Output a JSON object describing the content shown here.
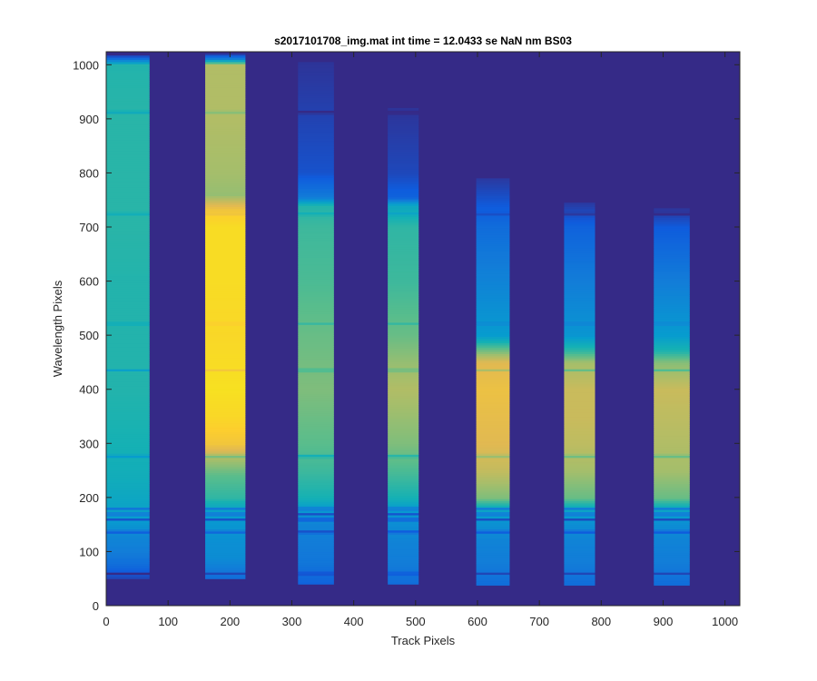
{
  "figure": {
    "background": "#ffffff"
  },
  "chart_data": {
    "type": "heatmap",
    "title": "s2017101708_img.mat int time = 12.0433 se  NaN nm BS03",
    "xlabel": "Track Pixels",
    "ylabel": "Wavelength Pixels",
    "xlim": [
      0,
      1024
    ],
    "ylim": [
      0,
      1024
    ],
    "xticks": [
      0,
      100,
      200,
      300,
      400,
      500,
      600,
      700,
      800,
      900,
      1000
    ],
    "yticks": [
      0,
      100,
      200,
      300,
      400,
      500,
      600,
      700,
      800,
      900,
      1000
    ],
    "grid": false,
    "colormap": "parula",
    "background_color": "#352a87",
    "tracks": [
      {
        "x_start": 0,
        "x_end": 70,
        "y_start": 50,
        "y_end": 1020,
        "profile": [
          [
            50,
            0.05
          ],
          [
            75,
            0.15
          ],
          [
            100,
            0.2
          ],
          [
            130,
            0.23
          ],
          [
            150,
            0.28
          ],
          [
            170,
            0.32
          ],
          [
            200,
            0.35
          ],
          [
            240,
            0.38
          ],
          [
            300,
            0.4
          ],
          [
            400,
            0.42
          ],
          [
            500,
            0.42
          ],
          [
            600,
            0.42
          ],
          [
            700,
            0.43
          ],
          [
            800,
            0.43
          ],
          [
            900,
            0.43
          ],
          [
            1000,
            0.42
          ],
          [
            1012,
            0.15
          ],
          [
            1020,
            0.0
          ]
        ]
      },
      {
        "x_start": 160,
        "x_end": 225,
        "y_start": 50,
        "y_end": 1020,
        "profile": [
          [
            50,
            0.15
          ],
          [
            90,
            0.25
          ],
          [
            120,
            0.26
          ],
          [
            150,
            0.28
          ],
          [
            175,
            0.32
          ],
          [
            200,
            0.44
          ],
          [
            240,
            0.5
          ],
          [
            270,
            0.6
          ],
          [
            300,
            0.76
          ],
          [
            350,
            0.84
          ],
          [
            400,
            0.88
          ],
          [
            450,
            0.86
          ],
          [
            500,
            0.84
          ],
          [
            600,
            0.86
          ],
          [
            700,
            0.86
          ],
          [
            725,
            0.8
          ],
          [
            760,
            0.58
          ],
          [
            800,
            0.6
          ],
          [
            900,
            0.62
          ],
          [
            1000,
            0.62
          ],
          [
            1012,
            0.2
          ],
          [
            1020,
            0.05
          ]
        ]
      },
      {
        "x_start": 310,
        "x_end": 368,
        "y_start": 40,
        "y_end": 1005,
        "profile": [
          [
            40,
            0.12
          ],
          [
            80,
            0.18
          ],
          [
            120,
            0.2
          ],
          [
            150,
            0.22
          ],
          [
            180,
            0.3
          ],
          [
            200,
            0.4
          ],
          [
            250,
            0.46
          ],
          [
            300,
            0.5
          ],
          [
            400,
            0.55
          ],
          [
            500,
            0.52
          ],
          [
            600,
            0.48
          ],
          [
            700,
            0.46
          ],
          [
            740,
            0.42
          ],
          [
            755,
            0.2
          ],
          [
            800,
            0.08
          ],
          [
            900,
            0.05
          ],
          [
            1005,
            0.02
          ]
        ]
      },
      {
        "x_start": 455,
        "x_end": 505,
        "y_start": 40,
        "y_end": 920,
        "profile": [
          [
            40,
            0.15
          ],
          [
            80,
            0.2
          ],
          [
            120,
            0.22
          ],
          [
            150,
            0.25
          ],
          [
            180,
            0.3
          ],
          [
            200,
            0.4
          ],
          [
            250,
            0.48
          ],
          [
            300,
            0.55
          ],
          [
            400,
            0.62
          ],
          [
            450,
            0.58
          ],
          [
            500,
            0.52
          ],
          [
            600,
            0.46
          ],
          [
            700,
            0.44
          ],
          [
            740,
            0.35
          ],
          [
            755,
            0.12
          ],
          [
            800,
            0.06
          ],
          [
            920,
            0.02
          ]
        ]
      },
      {
        "x_start": 598,
        "x_end": 652,
        "y_start": 38,
        "y_end": 790,
        "profile": [
          [
            38,
            0.15
          ],
          [
            80,
            0.2
          ],
          [
            120,
            0.22
          ],
          [
            150,
            0.26
          ],
          [
            180,
            0.35
          ],
          [
            200,
            0.55
          ],
          [
            250,
            0.65
          ],
          [
            300,
            0.7
          ],
          [
            350,
            0.72
          ],
          [
            400,
            0.74
          ],
          [
            450,
            0.7
          ],
          [
            470,
            0.55
          ],
          [
            500,
            0.3
          ],
          [
            600,
            0.22
          ],
          [
            700,
            0.15
          ],
          [
            790,
            0.03
          ]
        ]
      },
      {
        "x_start": 740,
        "x_end": 790,
        "y_start": 38,
        "y_end": 745,
        "profile": [
          [
            38,
            0.15
          ],
          [
            80,
            0.2
          ],
          [
            120,
            0.22
          ],
          [
            150,
            0.25
          ],
          [
            180,
            0.35
          ],
          [
            200,
            0.52
          ],
          [
            250,
            0.6
          ],
          [
            300,
            0.64
          ],
          [
            350,
            0.66
          ],
          [
            400,
            0.66
          ],
          [
            450,
            0.6
          ],
          [
            470,
            0.45
          ],
          [
            500,
            0.28
          ],
          [
            600,
            0.2
          ],
          [
            700,
            0.12
          ],
          [
            745,
            0.03
          ]
        ]
      },
      {
        "x_start": 885,
        "x_end": 943,
        "y_start": 38,
        "y_end": 735,
        "profile": [
          [
            38,
            0.15
          ],
          [
            80,
            0.2
          ],
          [
            120,
            0.22
          ],
          [
            150,
            0.25
          ],
          [
            180,
            0.35
          ],
          [
            200,
            0.52
          ],
          [
            250,
            0.6
          ],
          [
            300,
            0.62
          ],
          [
            350,
            0.64
          ],
          [
            400,
            0.66
          ],
          [
            450,
            0.56
          ],
          [
            470,
            0.42
          ],
          [
            500,
            0.3
          ],
          [
            600,
            0.2
          ],
          [
            700,
            0.1
          ],
          [
            735,
            0.02
          ]
        ]
      }
    ],
    "absorption_lines": [
      {
        "y": 60,
        "depth": 0.12
      },
      {
        "y": 137,
        "depth": 0.18
      },
      {
        "y": 160,
        "depth": 0.22
      },
      {
        "y": 170,
        "depth": 0.2
      },
      {
        "y": 180,
        "depth": 0.16
      },
      {
        "y": 277,
        "depth": 0.12
      },
      {
        "y": 436,
        "depth": 0.1
      },
      {
        "y": 522,
        "depth": 0.06
      },
      {
        "y": 725,
        "depth": 0.06
      },
      {
        "y": 913,
        "depth": 0.08
      }
    ]
  }
}
